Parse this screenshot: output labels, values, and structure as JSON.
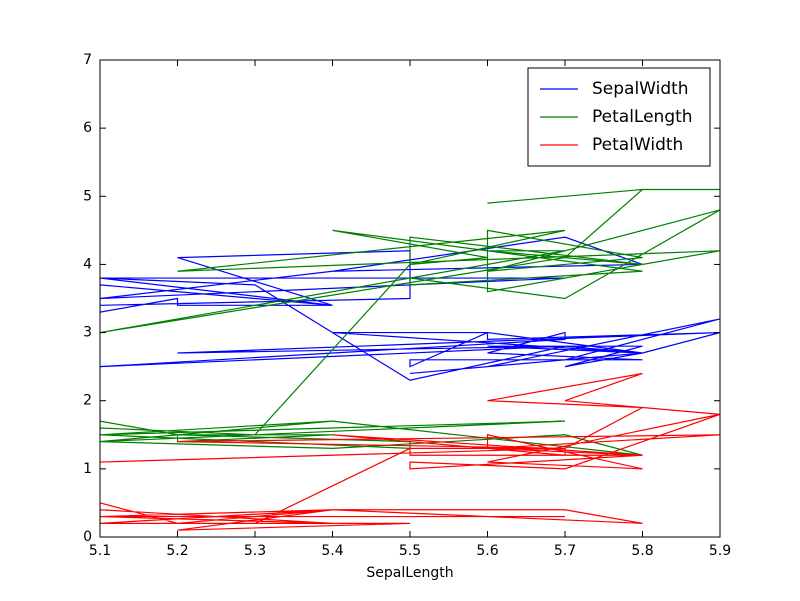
{
  "chart_data": {
    "type": "line",
    "x_label": "SepalLength",
    "x": [
      5.1,
      5.4,
      5.8,
      5.7,
      5.4,
      5.1,
      5.7,
      5.1,
      5.4,
      5.1,
      5.1,
      5.2,
      5.2,
      5.4,
      5.2,
      5.5,
      5.5,
      5.1,
      5.1,
      5.1,
      5.3,
      5.5,
      5.7,
      5.2,
      5.9,
      5.6,
      5.6,
      5.8,
      5.6,
      5.9,
      5.7,
      5.5,
      5.5,
      5.8,
      5.4,
      5.6,
      5.5,
      5.5,
      5.8,
      5.6,
      5.7,
      5.7,
      5.1,
      5.7,
      5.8,
      5.7,
      5.8,
      5.6,
      5.8,
      5.9
    ],
    "series": [
      {
        "name": "SepalWidth",
        "color": "#0000ff",
        "values": [
          3.5,
          3.9,
          4.0,
          4.4,
          3.9,
          3.5,
          3.8,
          3.8,
          3.4,
          3.7,
          3.3,
          3.5,
          3.4,
          3.4,
          4.1,
          4.2,
          3.5,
          3.4,
          3.8,
          3.8,
          3.7,
          2.3,
          2.8,
          2.7,
          3.0,
          2.9,
          3.0,
          2.7,
          2.5,
          3.2,
          2.6,
          2.4,
          2.4,
          2.7,
          3.0,
          3.0,
          2.5,
          2.6,
          2.6,
          2.7,
          3.0,
          2.9,
          2.5,
          2.8,
          2.7,
          2.5,
          2.8,
          2.8,
          2.7,
          3.0
        ]
      },
      {
        "name": "PetalLength",
        "color": "#008000",
        "values": [
          1.4,
          1.7,
          1.2,
          1.5,
          1.3,
          1.4,
          1.7,
          1.5,
          1.7,
          1.5,
          1.7,
          1.5,
          1.4,
          1.5,
          1.5,
          1.4,
          1.3,
          1.5,
          1.9,
          1.6,
          1.5,
          4.0,
          4.5,
          3.9,
          4.2,
          3.6,
          4.5,
          4.1,
          3.9,
          4.8,
          3.5,
          3.8,
          3.7,
          3.9,
          4.5,
          4.1,
          4.0,
          4.4,
          4.0,
          4.2,
          4.2,
          4.2,
          3.0,
          4.1,
          5.1,
          5.0,
          5.1,
          4.9,
          5.1,
          5.1
        ]
      },
      {
        "name": "PetalWidth",
        "color": "#ff0000",
        "values": [
          0.2,
          0.4,
          0.2,
          0.4,
          0.4,
          0.3,
          0.3,
          0.3,
          0.2,
          0.4,
          0.5,
          0.2,
          0.2,
          0.4,
          0.1,
          0.2,
          0.2,
          0.2,
          0.4,
          0.2,
          0.2,
          1.3,
          1.3,
          1.4,
          1.5,
          1.3,
          1.5,
          1.0,
          1.1,
          1.8,
          1.0,
          1.1,
          1.0,
          1.2,
          1.5,
          1.3,
          1.3,
          1.2,
          1.2,
          1.3,
          1.2,
          1.3,
          1.1,
          1.3,
          1.9,
          2.0,
          2.4,
          2.0,
          1.9,
          1.8
        ]
      }
    ],
    "xlim": [
      5.1,
      5.9
    ],
    "xticks": [
      5.1,
      5.2,
      5.3,
      5.4,
      5.5,
      5.6,
      5.7,
      5.8,
      5.9
    ],
    "ylim": [
      0,
      7
    ],
    "yticks": [
      0,
      1,
      2,
      3,
      4,
      5,
      6,
      7
    ],
    "grid": false,
    "legend": "upper right"
  }
}
